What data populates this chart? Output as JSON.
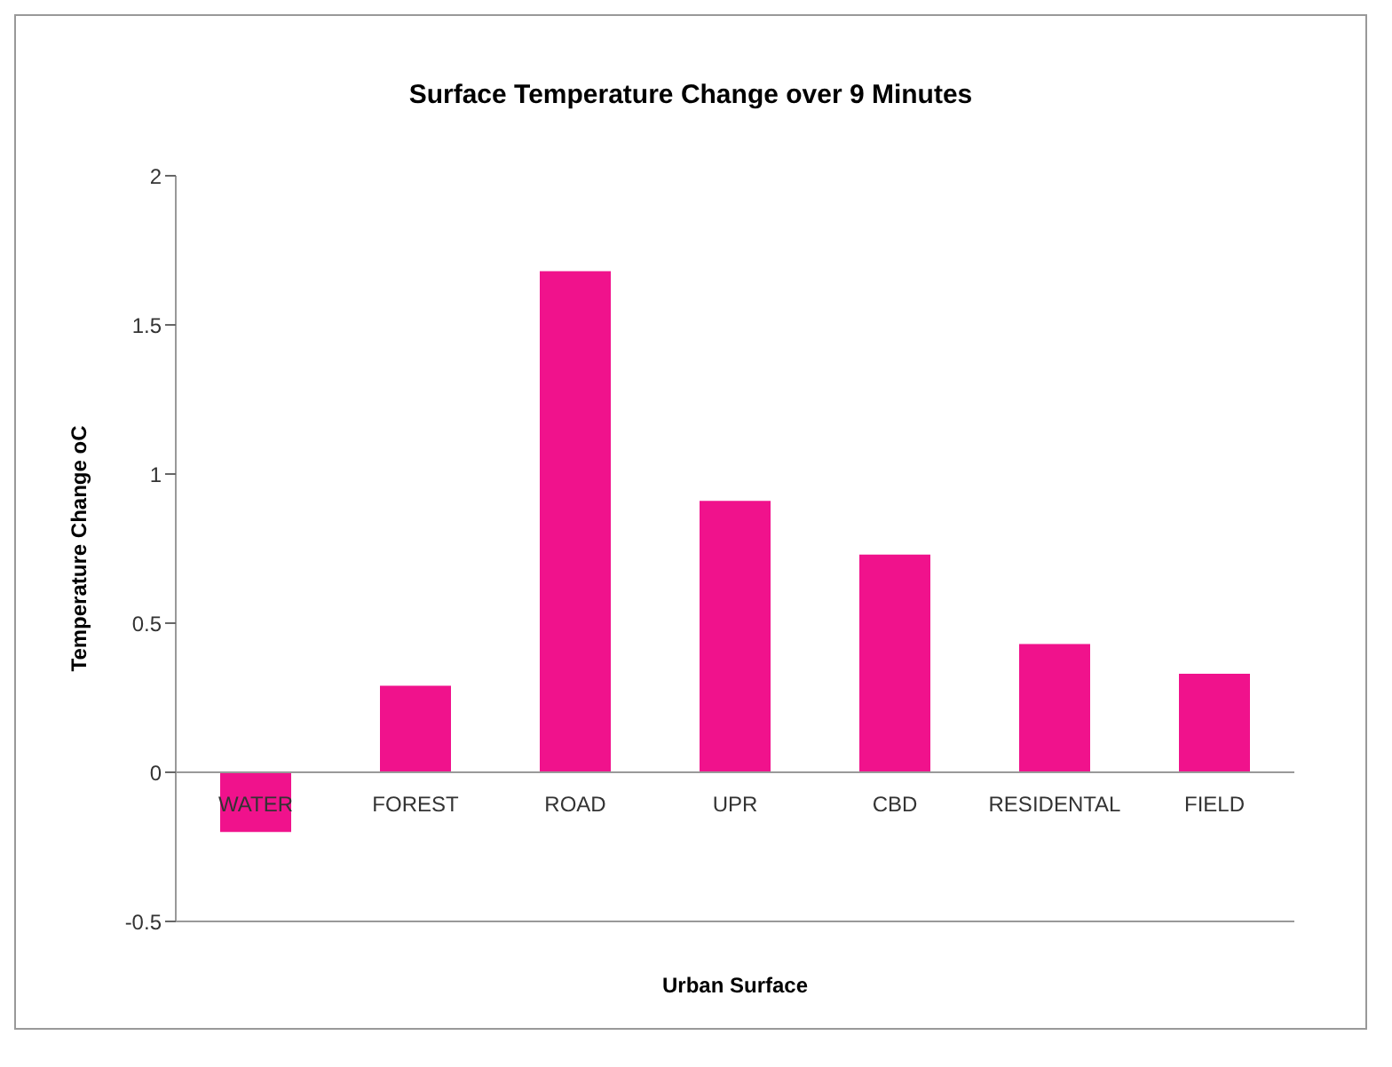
{
  "chart_data": {
    "type": "bar",
    "title": "Surface Temperature Change over 9 Minutes",
    "xlabel": "Urban Surface",
    "ylabel": "Temperature Change oC",
    "categories": [
      "WATER",
      "FOREST",
      "ROAD",
      "UPR",
      "CBD",
      "RESIDENTAL",
      "FIELD"
    ],
    "values": [
      -0.2,
      0.29,
      1.68,
      0.91,
      0.73,
      0.43,
      0.33
    ],
    "color": "#f0128c",
    "ylim": [
      -0.5,
      2
    ],
    "yticks": [
      -0.5,
      0,
      0.5,
      1,
      1.5,
      2
    ],
    "grid": false
  }
}
